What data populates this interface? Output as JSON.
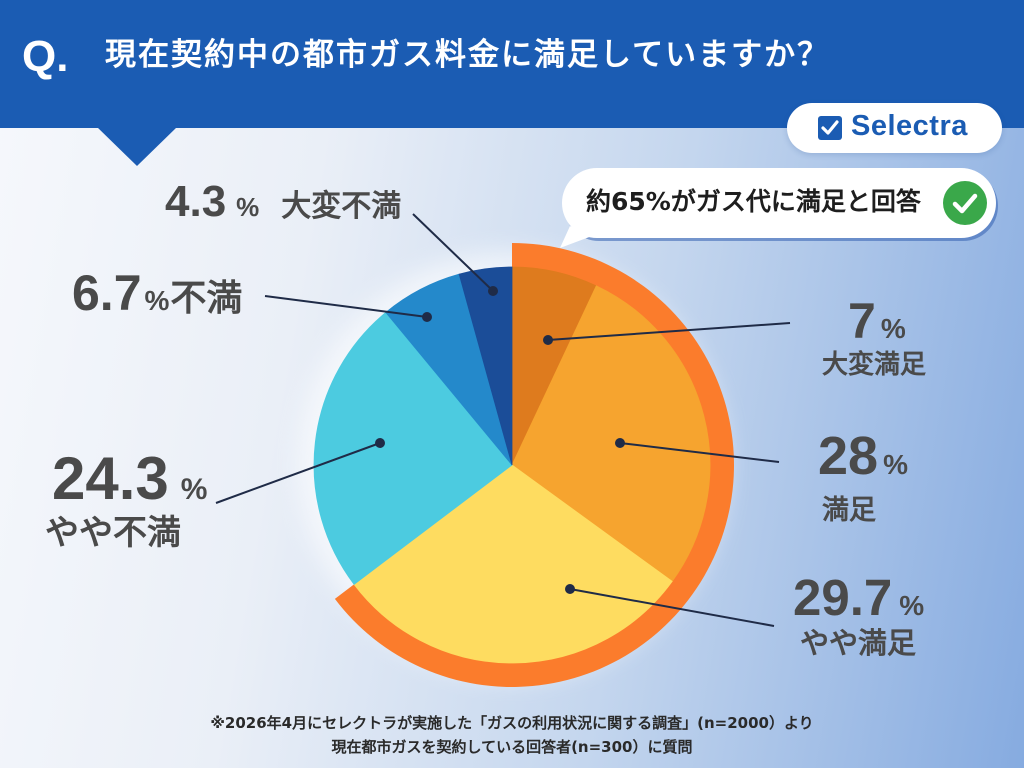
{
  "header": {
    "q_mark": "Q.",
    "color": "#1b5cb3"
  },
  "brand": {
    "name": "Selectra",
    "icon": "check-square-icon",
    "color": "#1b5cb3"
  },
  "callout": {
    "text": "約65%がガス代に満足と回答",
    "icon": "check-circle-icon",
    "icon_color": "#3aa84a"
  },
  "chart_data": {
    "type": "pie",
    "title": "現在契約中の都市ガス料金に満足していますか？",
    "unit": "%",
    "slices": [
      {
        "label": "大変満足",
        "value": 7,
        "color": "#de7b1e",
        "highlighted": true
      },
      {
        "label": "満足",
        "value": 28,
        "color": "#f6a42f",
        "highlighted": true
      },
      {
        "label": "やや満足",
        "value": 29.7,
        "color": "#fedc60",
        "highlighted": true
      },
      {
        "label": "やや不満",
        "value": 24.3,
        "color": "#4ccbe0",
        "highlighted": false
      },
      {
        "label": "不満",
        "value": 6.7,
        "color": "#2489cb",
        "highlighted": false
      },
      {
        "label": "大変不満",
        "value": 4.3,
        "color": "#1b4d98",
        "highlighted": false
      }
    ],
    "highlight_color": "#fb7c2c"
  },
  "footnote": {
    "lines": [
      "※2026年4月にセレクトラが実施した「ガスの利用状況に関する調査」(n=2000）より",
      "現在都市ガスを契約している回答者(n=300）に質問"
    ]
  }
}
